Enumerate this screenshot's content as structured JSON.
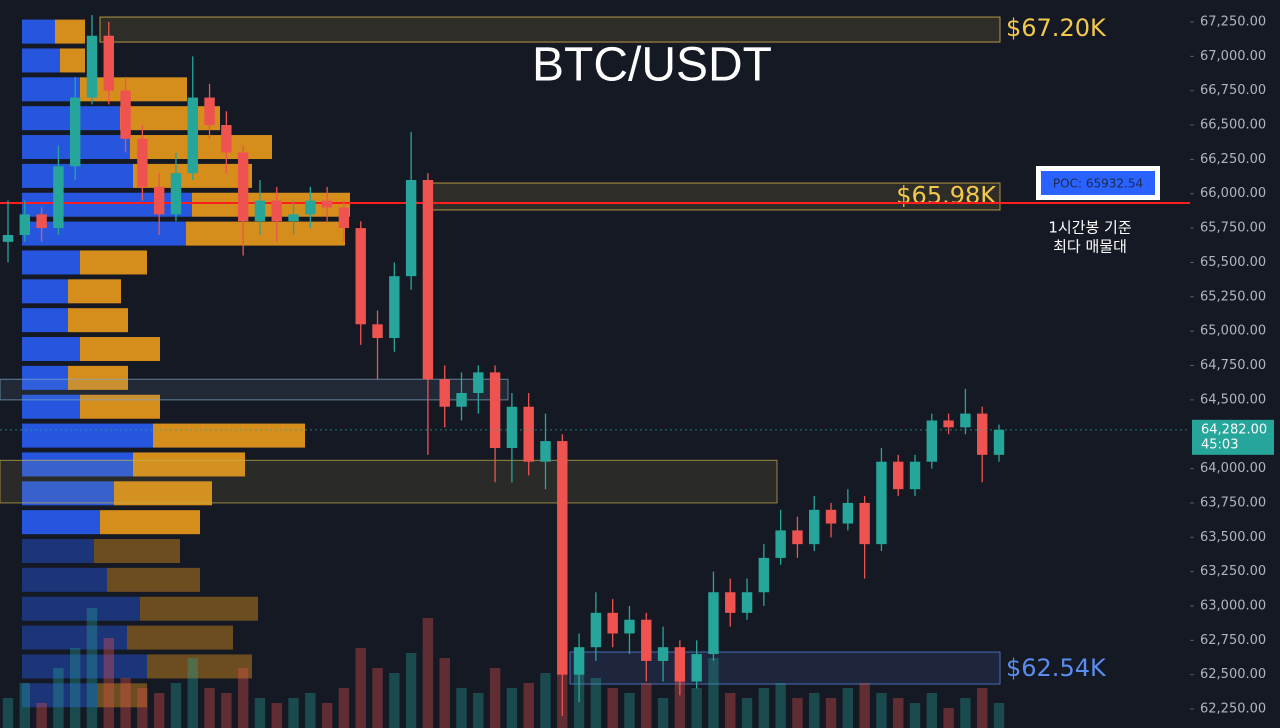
{
  "chart_data": {
    "type": "candlestick",
    "title": "BTC/USDT",
    "ylim": [
      62112,
      67410
    ],
    "yticks": [
      {
        "value": 67250,
        "label": "67,250.00"
      },
      {
        "value": 67000,
        "label": "67,000.00"
      },
      {
        "value": 66750,
        "label": "66,750.00"
      },
      {
        "value": 66500,
        "label": "66,500.00"
      },
      {
        "value": 66250,
        "label": "66,250.00"
      },
      {
        "value": 66000,
        "label": "66,000.00"
      },
      {
        "value": 65750,
        "label": "65,750.00"
      },
      {
        "value": 65500,
        "label": "65,500.00"
      },
      {
        "value": 65250,
        "label": "65,250.00"
      },
      {
        "value": 65000,
        "label": "65,000.00"
      },
      {
        "value": 64750,
        "label": "64,750.00"
      },
      {
        "value": 64500,
        "label": "64,500.00"
      },
      {
        "value": 64000,
        "label": "64,000.00"
      },
      {
        "value": 63750,
        "label": "63,750.00"
      },
      {
        "value": 63500,
        "label": "63,500.00"
      },
      {
        "value": 63250,
        "label": "63,250.00"
      },
      {
        "value": 63000,
        "label": "63,000.00"
      },
      {
        "value": 62750,
        "label": "62,750.00"
      },
      {
        "value": 62500,
        "label": "62,500.00"
      },
      {
        "value": 62250,
        "label": "62,250.00"
      }
    ],
    "up_color": "#26a69a",
    "down_color": "#ef5350",
    "ohlc": [
      [
        65650,
        65950,
        65500,
        65700
      ],
      [
        65700,
        65950,
        65650,
        65850
      ],
      [
        65850,
        65900,
        65650,
        65750
      ],
      [
        65750,
        66350,
        65700,
        66200
      ],
      [
        66200,
        66850,
        66100,
        66700
      ],
      [
        66700,
        67300,
        66650,
        67150
      ],
      [
        67150,
        67250,
        66650,
        66750
      ],
      [
        66750,
        66850,
        66300,
        66400
      ],
      [
        66400,
        66500,
        65950,
        66050
      ],
      [
        66050,
        66150,
        65700,
        65850
      ],
      [
        65850,
        66300,
        65800,
        66150
      ],
      [
        66150,
        67000,
        66100,
        66700
      ],
      [
        66700,
        66800,
        66400,
        66500
      ],
      [
        66500,
        66600,
        66150,
        66300
      ],
      [
        66300,
        66350,
        65550,
        65800
      ],
      [
        65800,
        66100,
        65700,
        65950
      ],
      [
        65950,
        66050,
        65650,
        65800
      ],
      [
        65800,
        65950,
        65700,
        65850
      ],
      [
        65850,
        66050,
        65750,
        65950
      ],
      [
        65950,
        66050,
        65800,
        65900
      ],
      [
        65900,
        65950,
        65650,
        65750
      ],
      [
        65750,
        65800,
        64900,
        65050
      ],
      [
        65050,
        65150,
        64650,
        64950
      ],
      [
        64950,
        65500,
        64850,
        65400
      ],
      [
        65400,
        66450,
        65300,
        66100
      ],
      [
        66100,
        66150,
        64100,
        64650
      ],
      [
        64650,
        64750,
        64300,
        64450
      ],
      [
        64450,
        64700,
        64350,
        64550
      ],
      [
        64550,
        64750,
        64400,
        64700
      ],
      [
        64700,
        64750,
        63900,
        64150
      ],
      [
        64150,
        64550,
        63900,
        64450
      ],
      [
        64450,
        64550,
        63950,
        64050
      ],
      [
        64050,
        64400,
        63850,
        64200
      ],
      [
        64200,
        64250,
        62200,
        62500
      ],
      [
        62500,
        62800,
        62300,
        62700
      ],
      [
        62700,
        63100,
        62600,
        62950
      ],
      [
        62950,
        63050,
        62700,
        62800
      ],
      [
        62800,
        63000,
        62650,
        62900
      ],
      [
        62900,
        62950,
        62450,
        62600
      ],
      [
        62600,
        62850,
        62450,
        62700
      ],
      [
        62700,
        62750,
        62350,
        62450
      ],
      [
        62450,
        62750,
        62400,
        62650
      ],
      [
        62650,
        63250,
        62600,
        63100
      ],
      [
        63100,
        63200,
        62850,
        62950
      ],
      [
        62950,
        63200,
        62900,
        63100
      ],
      [
        63100,
        63450,
        63000,
        63350
      ],
      [
        63350,
        63700,
        63300,
        63550
      ],
      [
        63550,
        63650,
        63350,
        63450
      ],
      [
        63450,
        63800,
        63400,
        63700
      ],
      [
        63700,
        63750,
        63500,
        63600
      ],
      [
        63600,
        63850,
        63550,
        63750
      ],
      [
        63750,
        63800,
        63200,
        63450
      ],
      [
        63450,
        64150,
        63400,
        64050
      ],
      [
        64050,
        64100,
        63800,
        63850
      ],
      [
        63850,
        64100,
        63800,
        64050
      ],
      [
        64050,
        64400,
        64000,
        64350
      ],
      [
        64350,
        64400,
        64250,
        64300
      ],
      [
        64300,
        64580,
        64250,
        64400
      ],
      [
        64400,
        64450,
        63900,
        64100
      ],
      [
        64100,
        64320,
        64050,
        64282
      ]
    ],
    "volumes": [
      30,
      45,
      25,
      60,
      80,
      120,
      90,
      50,
      40,
      35,
      45,
      70,
      40,
      35,
      60,
      30,
      25,
      30,
      35,
      25,
      40,
      80,
      60,
      55,
      75,
      110,
      70,
      40,
      35,
      60,
      40,
      45,
      55,
      125,
      80,
      50,
      40,
      35,
      45,
      30,
      55,
      40,
      70,
      35,
      30,
      40,
      45,
      30,
      35,
      30,
      40,
      45,
      35,
      30,
      25,
      35,
      20,
      30,
      40,
      25
    ],
    "volume_profile": {
      "prices": [
        67180,
        66970,
        66760,
        66550,
        66340,
        66130,
        65920,
        65710,
        65500,
        65290,
        65080,
        64870,
        64660,
        64450,
        64240,
        64030,
        63820,
        63610,
        63400,
        63190,
        62980,
        62770,
        62560,
        62350
      ],
      "buy": [
        33,
        38,
        58,
        98,
        108,
        111,
        170,
        164,
        58,
        46,
        46,
        58,
        46,
        58,
        131,
        111,
        92,
        78,
        72,
        85,
        118,
        105,
        125,
        75
      ],
      "sell": [
        30,
        25,
        107,
        100,
        142,
        119,
        158,
        159,
        67,
        53,
        60,
        80,
        60,
        80,
        152,
        112,
        98,
        100,
        86,
        93,
        118,
        106,
        105,
        50
      ],
      "buy_color": "#2962ff",
      "sell_color": "#f7a21b"
    },
    "zones": [
      {
        "low": 67104,
        "high": 67286,
        "value": 67200,
        "label": "$67.20K",
        "color": "#f2c94c"
      },
      {
        "low": 65882,
        "high": 66078,
        "value": 65980,
        "label": "$65.98K",
        "color": "#f2c94c"
      },
      {
        "low": 62432,
        "high": 62665,
        "value": 62540,
        "label": "$62.54K",
        "color": "#5b8def"
      },
      {
        "low": 64500,
        "high": 64650,
        "color": "#7fa8c9"
      },
      {
        "low": 63750,
        "high": 64060,
        "color": "#c9b24c"
      }
    ],
    "poc": {
      "value": 65932.54,
      "label": "POC: 65932.54",
      "color": "#ff1e1e"
    },
    "poc_note": [
      "1시간봉 기준",
      "최다 매물대"
    ],
    "last_price": {
      "value": 64282,
      "label": "64,282.00"
    },
    "countdown": "45:03"
  }
}
